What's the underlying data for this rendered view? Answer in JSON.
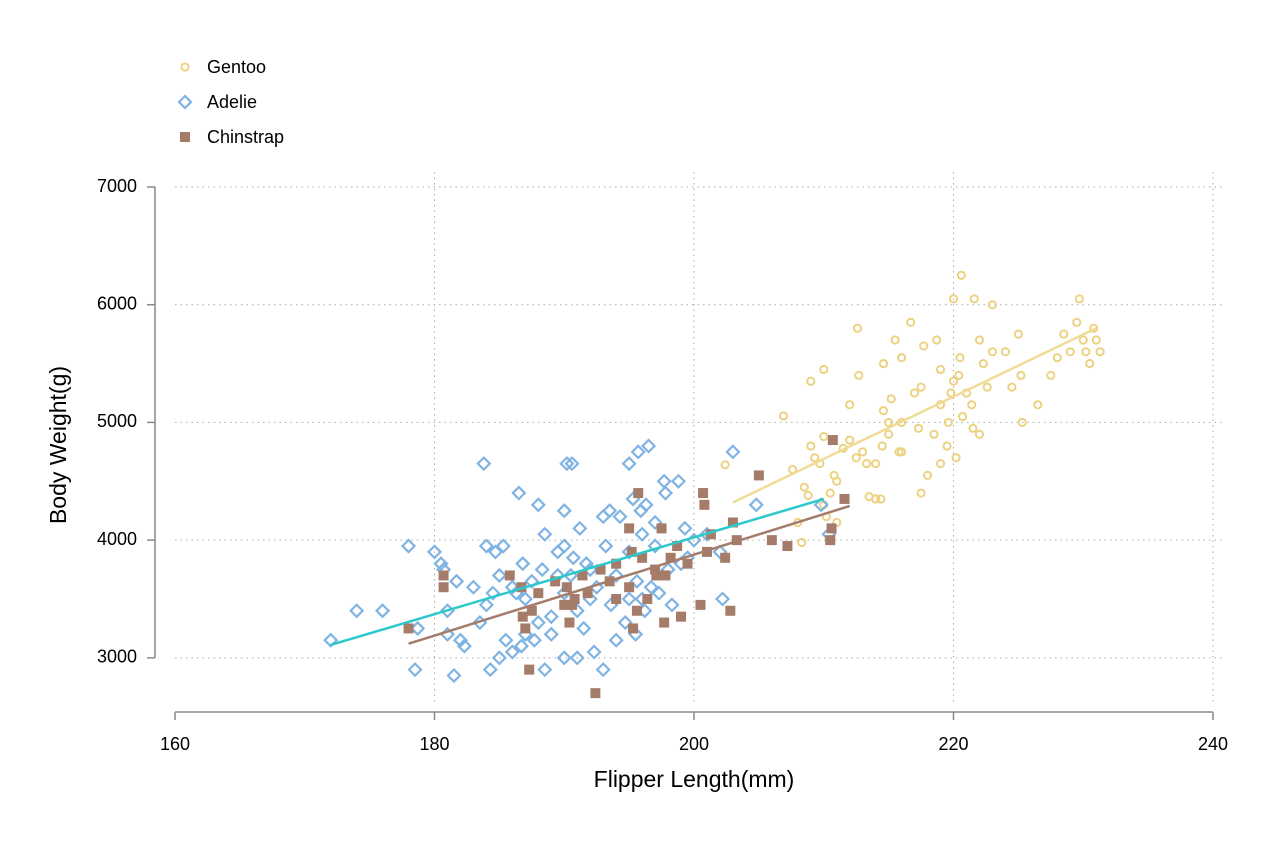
{
  "chart_data": {
    "type": "scatter",
    "x_label": "Flipper Length(mm)",
    "y_label": "Body Weight(g)",
    "xlim": [
      160,
      240
    ],
    "ylim": [
      2540,
      7000
    ],
    "xticks": [
      160,
      180,
      200,
      220,
      240
    ],
    "yticks": [
      3000,
      4000,
      5000,
      6000,
      7000
    ],
    "grid": true,
    "legend": "top-left",
    "series": [
      {
        "name": "Gentoo",
        "color": "#ecd283",
        "marker": "circle",
        "x": [
          202.4,
          206.9,
          207.6,
          208,
          208.3,
          208.5,
          208.8,
          209,
          209,
          209.3,
          209.7,
          210,
          210,
          210,
          210.2,
          210.5,
          210.8,
          211,
          211,
          211.5,
          212,
          212,
          212.5,
          212.6,
          212.7,
          213,
          213.3,
          214,
          214,
          214.4,
          214.5,
          214.6,
          214.6,
          215,
          215,
          215.2,
          215.5,
          215.8,
          216,
          216,
          216.7,
          217,
          217.3,
          217.5,
          217.5,
          217.7,
          218,
          218.5,
          218.7,
          219,
          219,
          219.5,
          219.6,
          219.8,
          220,
          220,
          220.2,
          220.4,
          220.5,
          220.6,
          220.7,
          221,
          221.4,
          221.5,
          221.6,
          222,
          222,
          222.3,
          222.6,
          223,
          223,
          224,
          224.5,
          225,
          225.2,
          225.3,
          226.5,
          227.5,
          228,
          228.5,
          229,
          229.5,
          229.7,
          230,
          230.2,
          230.5,
          230.8,
          231,
          231.3,
          213.5,
          216,
          219,
          210.4
        ],
        "values": [
          4640,
          5055,
          4600,
          4150,
          3980,
          4450,
          4380,
          5350,
          4800,
          4700,
          4650,
          5450,
          4880,
          4300,
          4200,
          4400,
          4550,
          4150,
          4500,
          4780,
          4850,
          5150,
          4700,
          5800,
          5400,
          4750,
          4650,
          4350,
          4650,
          4350,
          4800,
          5100,
          5500,
          4900,
          5000,
          5200,
          5700,
          4750,
          5550,
          5000,
          5850,
          5250,
          4950,
          4400,
          5300,
          5650,
          4550,
          4900,
          5700,
          5150,
          5450,
          4800,
          5000,
          5250,
          5350,
          6050,
          4700,
          5400,
          5550,
          6250,
          5050,
          5250,
          5150,
          4950,
          6050,
          5700,
          4900,
          5500,
          5300,
          5600,
          6000,
          5600,
          5300,
          5750,
          5400,
          5000,
          5150,
          5400,
          5550,
          5750,
          5600,
          5850,
          6050,
          5700,
          5600,
          5500,
          5800,
          5700,
          5600,
          4370,
          4750,
          4650,
          4000
        ],
        "trend": {
          "color": "#f0dc96",
          "x": [
            203,
            231
          ],
          "values": [
            4320,
            5800
          ]
        }
      },
      {
        "name": "Adelie",
        "color": "#7fb3e3",
        "marker": "diamond",
        "x": [
          172,
          174,
          176,
          178,
          178.5,
          178.7,
          180,
          180.5,
          180.7,
          181,
          181,
          181.5,
          181.7,
          182,
          182.3,
          183,
          183.5,
          183.8,
          184,
          184,
          184.3,
          184.5,
          184.7,
          185,
          185,
          185.3,
          185.5,
          186,
          186,
          186.3,
          186.5,
          186.7,
          186.8,
          187,
          187,
          187.5,
          187.7,
          188,
          188,
          188.3,
          188.5,
          188.5,
          189,
          189,
          189.5,
          189.5,
          190,
          190,
          190,
          190,
          190.2,
          190.5,
          190.6,
          190.7,
          191,
          191,
          191.2,
          191.5,
          191.7,
          192,
          192,
          192.3,
          192.5,
          193,
          193,
          193.2,
          193.5,
          193.6,
          194,
          194,
          194.3,
          194.7,
          195,
          195,
          195,
          195.3,
          195.5,
          195.6,
          195.7,
          196,
          196,
          196.3,
          196.5,
          196.7,
          197,
          197,
          197.3,
          197.7,
          197.8,
          198,
          198.3,
          198.8,
          199,
          199.3,
          199.5,
          200,
          201,
          202,
          202.2,
          203,
          204.8,
          209.8,
          210.4,
          196.2,
          195.9
        ],
        "values": [
          3150,
          3400,
          3400,
          3950,
          2900,
          3250,
          3900,
          3800,
          3750,
          3400,
          3200,
          2850,
          3650,
          3150,
          3100,
          3600,
          3300,
          4650,
          3450,
          3950,
          2900,
          3550,
          3900,
          3700,
          3000,
          3950,
          3150,
          3050,
          3600,
          3550,
          4400,
          3100,
          3800,
          3200,
          3500,
          3650,
          3150,
          3300,
          4300,
          3750,
          2900,
          4050,
          3200,
          3350,
          3700,
          3900,
          3000,
          3550,
          3950,
          4250,
          4650,
          3700,
          4650,
          3850,
          3000,
          3400,
          4100,
          3250,
          3800,
          3500,
          3750,
          3050,
          3600,
          4200,
          2900,
          3950,
          4250,
          3450,
          3150,
          3700,
          4200,
          3300,
          4650,
          3500,
          3900,
          4350,
          3200,
          3650,
          4750,
          4050,
          3500,
          4300,
          4800,
          3600,
          3950,
          4150,
          3550,
          4500,
          4400,
          3750,
          3450,
          4500,
          3800,
          4100,
          3850,
          4000,
          4050,
          3900,
          3500,
          4750,
          4300,
          4300,
          4050,
          3400,
          4250
        ],
        "trend": {
          "color": "#2cc9cc",
          "x": [
            172,
            210
          ],
          "values": [
            3110,
            4350
          ]
        }
      },
      {
        "name": "Chinstrap",
        "color": "#a57c6a",
        "marker": "square",
        "x": [
          178,
          180.7,
          180.7,
          185.8,
          186.7,
          186.8,
          187,
          187.3,
          187.5,
          188,
          189.3,
          190,
          190.2,
          190.4,
          190.6,
          190.8,
          191.4,
          191.8,
          192.4,
          192.8,
          193.5,
          194,
          194,
          195,
          195,
          195.2,
          195.3,
          195.6,
          195.7,
          196,
          196.4,
          197,
          197.1,
          197.5,
          197.7,
          197.8,
          198.2,
          198.7,
          199,
          199.5,
          200.5,
          200.7,
          200.8,
          201,
          201.3,
          202.4,
          202.8,
          203,
          203.3,
          205,
          206,
          207.2,
          210.5,
          210.6,
          210.7,
          211.6
        ],
        "values": [
          3250,
          3700,
          3600,
          3700,
          3600,
          3350,
          3250,
          2900,
          3400,
          3550,
          3650,
          3450,
          3600,
          3300,
          3450,
          3500,
          3700,
          3550,
          2700,
          3750,
          3650,
          3500,
          3800,
          4100,
          3600,
          3900,
          3250,
          3400,
          4400,
          3850,
          3500,
          3750,
          3700,
          4100,
          3300,
          3700,
          3850,
          3950,
          3350,
          3800,
          3450,
          4400,
          4300,
          3900,
          4050,
          3850,
          3400,
          4150,
          4000,
          4550,
          4000,
          3950,
          4000,
          4100,
          4850,
          4350
        ],
        "trend": {
          "color": "#a57c6a",
          "x": [
            178,
            212
          ],
          "values": [
            3120,
            4290
          ]
        }
      }
    ]
  }
}
